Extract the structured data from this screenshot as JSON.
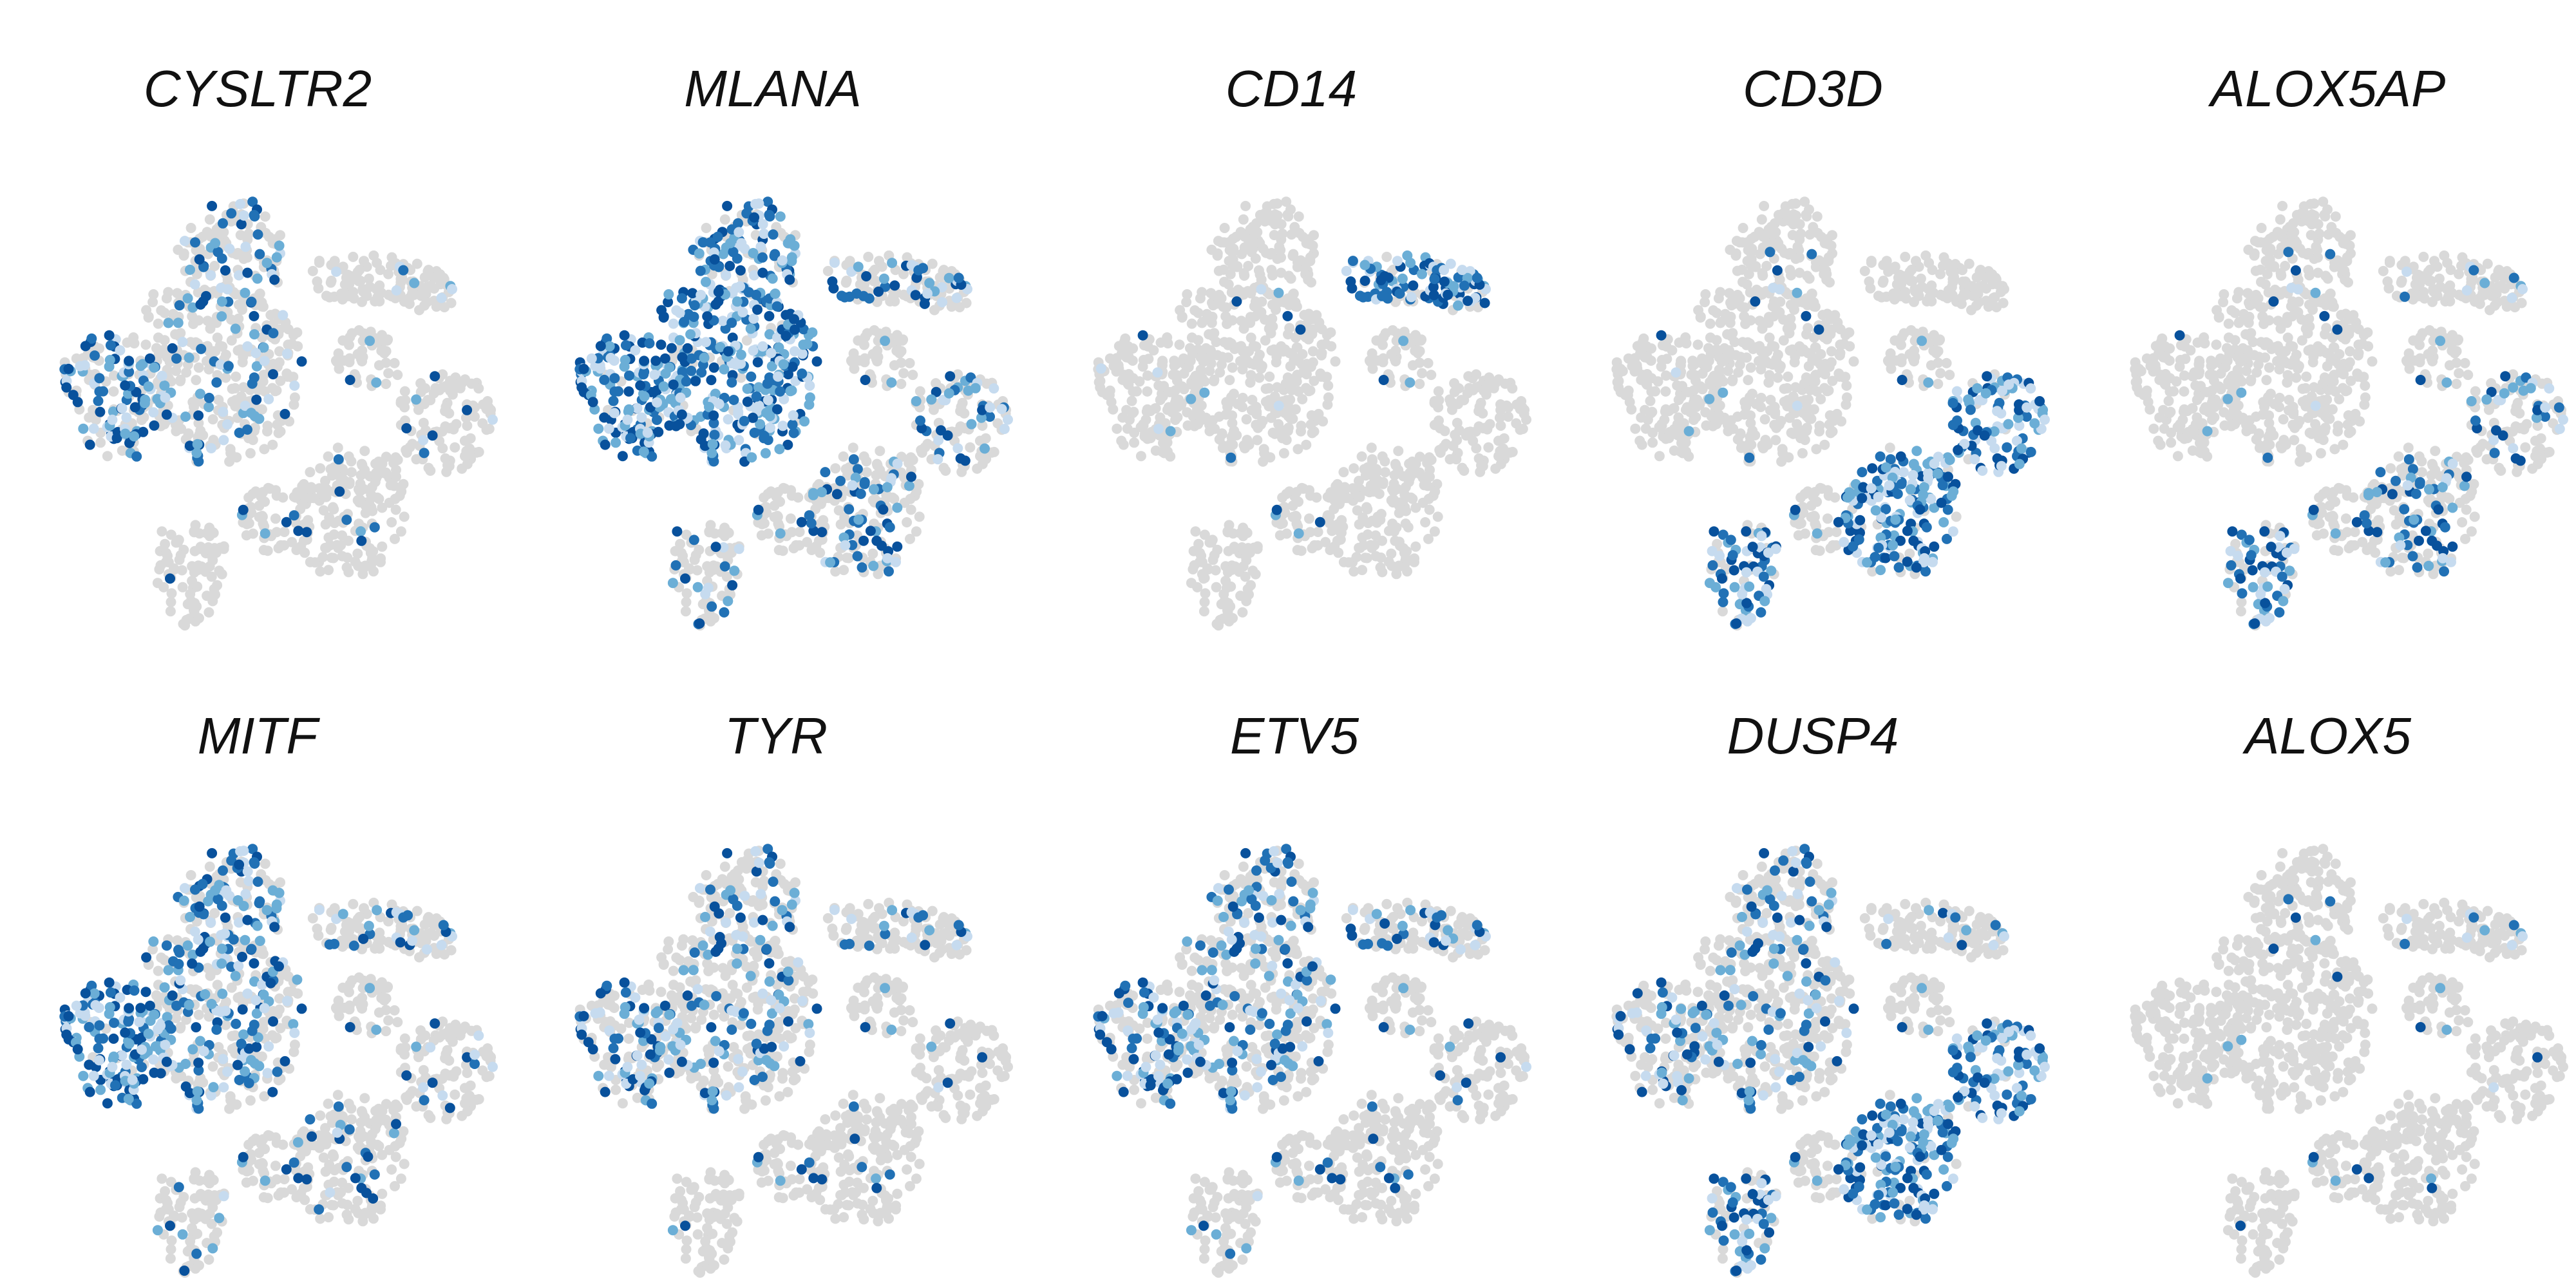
{
  "figure": {
    "background": "#ffffff"
  },
  "colors": {
    "not_expressed": "#d9d9d9",
    "low": "#c6dbef",
    "mid": "#6baed6",
    "high": "#2171b5",
    "max": "#08519c"
  },
  "chart_data": [
    {
      "type": "scatter",
      "title": "CYSLTR2",
      "xlabel": "",
      "ylabel": "",
      "grid": false,
      "expression": {
        "melanoma_left": 0.6,
        "melanoma_center": 0.25,
        "melanoma_top": 0.3,
        "myeloid": 0.05,
        "tcell_right": 0.04,
        "tcell_bottom": 0.05,
        "stromal": 0.03
      }
    },
    {
      "type": "scatter",
      "title": "MLANA",
      "xlabel": "",
      "ylabel": "",
      "grid": false,
      "expression": {
        "melanoma_left": 0.95,
        "melanoma_center": 0.9,
        "melanoma_top": 0.7,
        "myeloid": 0.3,
        "tcell_right": 0.3,
        "tcell_bottom": 0.3,
        "stromal": 0.3
      }
    },
    {
      "type": "scatter",
      "title": "CD14",
      "xlabel": "",
      "ylabel": "",
      "grid": false,
      "expression": {
        "melanoma_left": 0.04,
        "melanoma_center": 0.02,
        "melanoma_top": 0.0,
        "myeloid": 0.75,
        "tcell_right": 0.0,
        "tcell_bottom": 0.0,
        "stromal": 0.0
      }
    },
    {
      "type": "scatter",
      "title": "CD3D",
      "xlabel": "",
      "ylabel": "",
      "grid": false,
      "expression": {
        "melanoma_left": 0.03,
        "melanoma_center": 0.02,
        "melanoma_top": 0.03,
        "myeloid": 0.0,
        "tcell_right": 0.92,
        "tcell_bottom": 0.92,
        "stromal": 0.7
      }
    },
    {
      "type": "scatter",
      "title": "ALOX5AP",
      "xlabel": "",
      "ylabel": "",
      "grid": false,
      "expression": {
        "melanoma_left": 0.02,
        "melanoma_center": 0.02,
        "melanoma_top": 0.03,
        "myeloid": 0.08,
        "tcell_right": 0.25,
        "tcell_bottom": 0.3,
        "stromal": 0.6
      }
    },
    {
      "type": "scatter",
      "title": "MITF",
      "xlabel": "",
      "ylabel": "",
      "grid": false,
      "expression": {
        "melanoma_left": 0.95,
        "melanoma_center": 0.45,
        "melanoma_top": 0.55,
        "myeloid": 0.2,
        "tcell_right": 0.1,
        "tcell_bottom": 0.12,
        "stromal": 0.15
      }
    },
    {
      "type": "scatter",
      "title": "TYR",
      "xlabel": "",
      "ylabel": "",
      "grid": false,
      "expression": {
        "melanoma_left": 0.5,
        "melanoma_center": 0.3,
        "melanoma_top": 0.25,
        "myeloid": 0.15,
        "tcell_right": 0.03,
        "tcell_bottom": 0.05,
        "stromal": 0.05
      }
    },
    {
      "type": "scatter",
      "title": "ETV5",
      "xlabel": "",
      "ylabel": "",
      "grid": false,
      "expression": {
        "melanoma_left": 0.55,
        "melanoma_center": 0.35,
        "melanoma_top": 0.4,
        "myeloid": 0.25,
        "tcell_right": 0.05,
        "tcell_bottom": 0.06,
        "stromal": 0.1
      }
    },
    {
      "type": "scatter",
      "title": "DUSP4",
      "xlabel": "",
      "ylabel": "",
      "grid": false,
      "expression": {
        "melanoma_left": 0.35,
        "melanoma_center": 0.25,
        "melanoma_top": 0.3,
        "myeloid": 0.1,
        "tcell_right": 0.92,
        "tcell_bottom": 0.92,
        "stromal": 0.55
      }
    },
    {
      "type": "scatter",
      "title": "ALOX5",
      "xlabel": "",
      "ylabel": "",
      "grid": false,
      "expression": {
        "melanoma_left": 0.01,
        "melanoma_center": 0.01,
        "melanoma_top": 0.01,
        "myeloid": 0.08,
        "tcell_right": 0.02,
        "tcell_bottom": 0.02,
        "stromal": 0.02
      }
    }
  ]
}
